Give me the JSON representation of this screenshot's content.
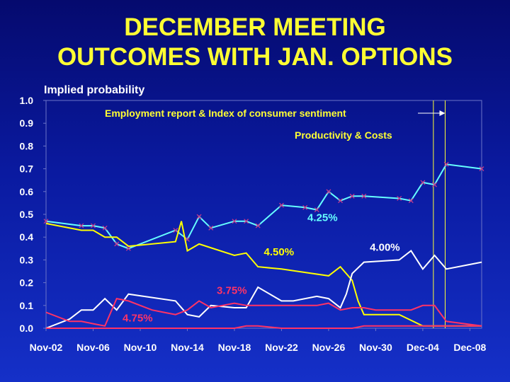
{
  "title_line1": "DECEMBER MEETING",
  "title_line2": "OUTCOMES WITH JAN. OPTIONS",
  "chart_data": {
    "type": "line",
    "ylabel": "Implied probability",
    "ylim": [
      0,
      1.0
    ],
    "yticks": [
      "0.0",
      "0.1",
      "0.2",
      "0.3",
      "0.4",
      "0.5",
      "0.6",
      "0.7",
      "0.8",
      "0.9",
      "1.0"
    ],
    "xlim": [
      0,
      37
    ],
    "xticks": [
      {
        "label": "Nov-02",
        "x": 0
      },
      {
        "label": "Nov-06",
        "x": 4
      },
      {
        "label": "Nov-10",
        "x": 8
      },
      {
        "label": "Nov-14",
        "x": 12
      },
      {
        "label": "Nov-18",
        "x": 16
      },
      {
        "label": "Nov-22",
        "x": 20
      },
      {
        "label": "Nov-26",
        "x": 24
      },
      {
        "label": "Nov-30",
        "x": 28
      },
      {
        "label": "Dec-04",
        "x": 32
      },
      {
        "label": "Dec-08",
        "x": 36
      }
    ],
    "grid": false,
    "annotations": [
      {
        "text": "Employment report & Index of consumer sentiment",
        "x": 33.9
      },
      {
        "text": "Productivity & Costs",
        "x": 32.9
      }
    ],
    "series": [
      {
        "name": "4.25%",
        "color": "#66ffff",
        "marker": "x",
        "label_x": 22.2,
        "label_y": 0.47,
        "x": [
          0,
          3,
          4,
          5,
          6,
          7,
          11,
          12,
          13,
          14,
          16,
          17,
          18,
          20,
          22,
          23,
          24,
          25,
          26,
          27,
          30,
          31,
          32,
          33,
          34,
          37
        ],
        "y": [
          0.47,
          0.45,
          0.45,
          0.44,
          0.37,
          0.35,
          0.43,
          0.39,
          0.49,
          0.44,
          0.47,
          0.47,
          0.45,
          0.54,
          0.53,
          0.52,
          0.6,
          0.56,
          0.58,
          0.58,
          0.57,
          0.56,
          0.64,
          0.63,
          0.72,
          0.7
        ]
      },
      {
        "name": "4.50%",
        "color": "#ffff00",
        "marker": "none",
        "label_x": 18.5,
        "label_y": 0.32,
        "x": [
          0,
          3,
          4,
          5,
          6,
          7,
          11,
          11.5,
          12,
          13,
          16,
          17,
          18,
          20,
          24,
          25,
          26,
          26.5,
          27,
          30,
          32,
          33,
          34,
          37
        ],
        "y": [
          0.46,
          0.43,
          0.43,
          0.4,
          0.4,
          0.36,
          0.38,
          0.47,
          0.34,
          0.37,
          0.32,
          0.33,
          0.27,
          0.26,
          0.23,
          0.27,
          0.21,
          0.12,
          0.06,
          0.06,
          0.01,
          0.01,
          0.01,
          0.01
        ]
      },
      {
        "name": "4.00%",
        "color": "#ffffff",
        "marker": "none",
        "label_x": 27.5,
        "label_y": 0.34,
        "x": [
          0,
          2,
          3,
          4,
          5,
          6,
          7,
          11,
          12,
          13,
          14,
          16,
          17,
          18,
          20,
          21,
          23,
          24,
          25,
          25.5,
          26,
          27,
          30,
          31,
          32,
          33,
          34,
          37
        ],
        "y": [
          0.0,
          0.04,
          0.08,
          0.08,
          0.13,
          0.08,
          0.15,
          0.12,
          0.06,
          0.05,
          0.1,
          0.09,
          0.09,
          0.18,
          0.12,
          0.12,
          0.14,
          0.13,
          0.09,
          0.15,
          0.24,
          0.29,
          0.3,
          0.34,
          0.26,
          0.32,
          0.26,
          0.29
        ]
      },
      {
        "name": "3.75%",
        "color": "#ff3366",
        "marker": "none",
        "label_x": 14.5,
        "label_y": 0.15,
        "x": [
          0,
          4,
          5,
          6,
          10,
          11,
          12,
          13,
          14,
          16,
          17,
          18,
          20,
          21,
          23,
          24,
          25,
          26,
          27,
          30,
          32,
          33,
          34,
          37
        ],
        "y": [
          0.0,
          0.0,
          0.0,
          0.0,
          0.0,
          0.0,
          0.0,
          0.0,
          0.0,
          0.0,
          0.01,
          0.01,
          0.0,
          0.0,
          0.0,
          0.0,
          0.0,
          0.0,
          0.01,
          0.01,
          0.01,
          0.01,
          0.01,
          0.01
        ]
      },
      {
        "name": "4.75%",
        "color": "#ff3366",
        "marker": "none",
        "label_x": 6.5,
        "label_y": 0.03,
        "x": [
          0,
          2,
          3,
          4,
          5,
          6,
          7,
          8,
          9,
          10,
          11,
          12,
          13,
          14,
          16,
          17,
          18,
          20,
          21,
          23,
          24,
          25,
          26,
          27,
          28,
          29,
          30,
          31,
          32,
          33,
          34,
          37
        ],
        "y": [
          0.07,
          0.03,
          0.03,
          0.02,
          0.01,
          0.13,
          0.12,
          0.1,
          0.08,
          0.07,
          0.06,
          0.08,
          0.12,
          0.09,
          0.11,
          0.1,
          0.1,
          0.1,
          0.1,
          0.1,
          0.11,
          0.08,
          0.09,
          0.09,
          0.08,
          0.08,
          0.08,
          0.08,
          0.1,
          0.1,
          0.03,
          0.01
        ]
      }
    ]
  }
}
